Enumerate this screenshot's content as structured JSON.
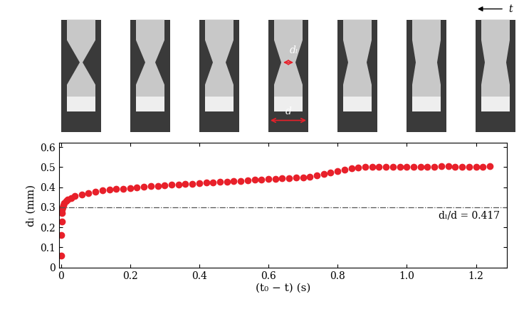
{
  "chart_data": {
    "type": "scatter",
    "x_label": "(t₀ − t) (s)",
    "y_label": "dₗ (mm)",
    "x": [
      0,
      0.001,
      0.002,
      0.003,
      0.004,
      0.005,
      0.007,
      0.01,
      0.015,
      0.02,
      0.03,
      0.04,
      0.06,
      0.08,
      0.1,
      0.12,
      0.14,
      0.16,
      0.18,
      0.2,
      0.22,
      0.24,
      0.26,
      0.28,
      0.3,
      0.32,
      0.34,
      0.36,
      0.38,
      0.4,
      0.42,
      0.44,
      0.46,
      0.48,
      0.5,
      0.52,
      0.54,
      0.56,
      0.58,
      0.6,
      0.62,
      0.64,
      0.66,
      0.68,
      0.7,
      0.72,
      0.74,
      0.76,
      0.78,
      0.8,
      0.82,
      0.84,
      0.86,
      0.88,
      0.9,
      0.92,
      0.94,
      0.96,
      0.98,
      1.0,
      1.02,
      1.04,
      1.06,
      1.08,
      1.1,
      1.12,
      1.14,
      1.16,
      1.18,
      1.2,
      1.22,
      1.24
    ],
    "values": [
      0.06,
      0.16,
      0.23,
      0.27,
      0.29,
      0.3,
      0.31,
      0.32,
      0.33,
      0.34,
      0.345,
      0.355,
      0.365,
      0.372,
      0.378,
      0.383,
      0.387,
      0.39,
      0.393,
      0.396,
      0.399,
      0.402,
      0.405,
      0.407,
      0.41,
      0.412,
      0.414,
      0.416,
      0.418,
      0.42,
      0.422,
      0.424,
      0.426,
      0.428,
      0.43,
      0.432,
      0.434,
      0.436,
      0.438,
      0.44,
      0.442,
      0.443,
      0.445,
      0.447,
      0.449,
      0.452,
      0.458,
      0.465,
      0.472,
      0.48,
      0.487,
      0.493,
      0.498,
      0.502,
      0.503,
      0.5,
      0.503,
      0.5,
      0.502,
      0.5,
      0.502,
      0.503,
      0.503,
      0.503,
      0.505,
      0.505,
      0.503,
      0.503,
      0.503,
      0.503,
      0.503,
      0.505
    ],
    "color": "#e8202a",
    "marker": "o",
    "line_style": "none",
    "xlim": [
      -0.005,
      1.29
    ],
    "xticks": [
      0,
      0.2,
      0.4,
      0.6,
      0.8,
      1.0,
      1.2
    ],
    "ylim": [
      0,
      0.62
    ],
    "yticks": [
      0,
      0.1,
      0.2,
      0.3,
      0.4,
      0.5,
      0.6
    ],
    "reference_line": {
      "value": 0.3,
      "label": "dₗ/d = 0.417"
    }
  },
  "image_strip": {
    "labels": [
      "dₗ",
      "d"
    ],
    "arrow_label": "t"
  }
}
